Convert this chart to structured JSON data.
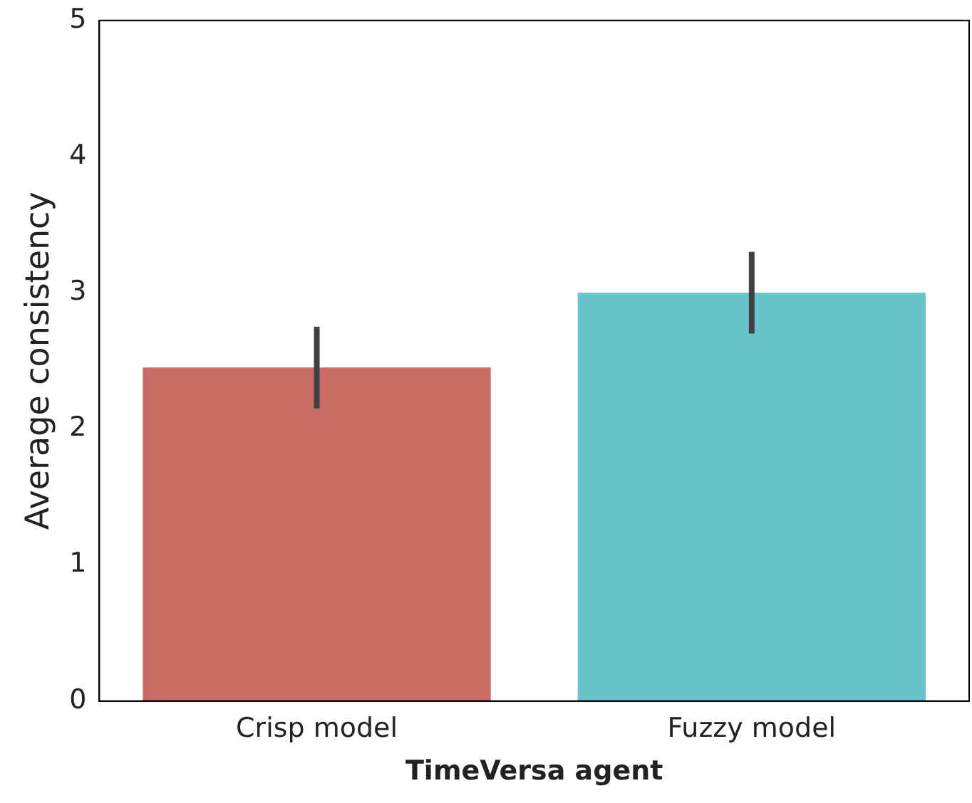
{
  "chart_data": {
    "type": "bar",
    "xlabel": "TimeVersa agent",
    "ylabel": "Average consistency",
    "categories": [
      "Crisp model",
      "Fuzzy model"
    ],
    "values": [
      2.45,
      3.0
    ],
    "colors": [
      "#c96b63",
      "#68c4cb"
    ],
    "errors": [
      [
        2.15,
        2.75
      ],
      [
        2.7,
        3.3
      ]
    ],
    "ylim": [
      0,
      5
    ],
    "yticks": [
      0,
      1,
      2,
      3,
      4,
      5
    ],
    "grid": false,
    "legend": false
  }
}
